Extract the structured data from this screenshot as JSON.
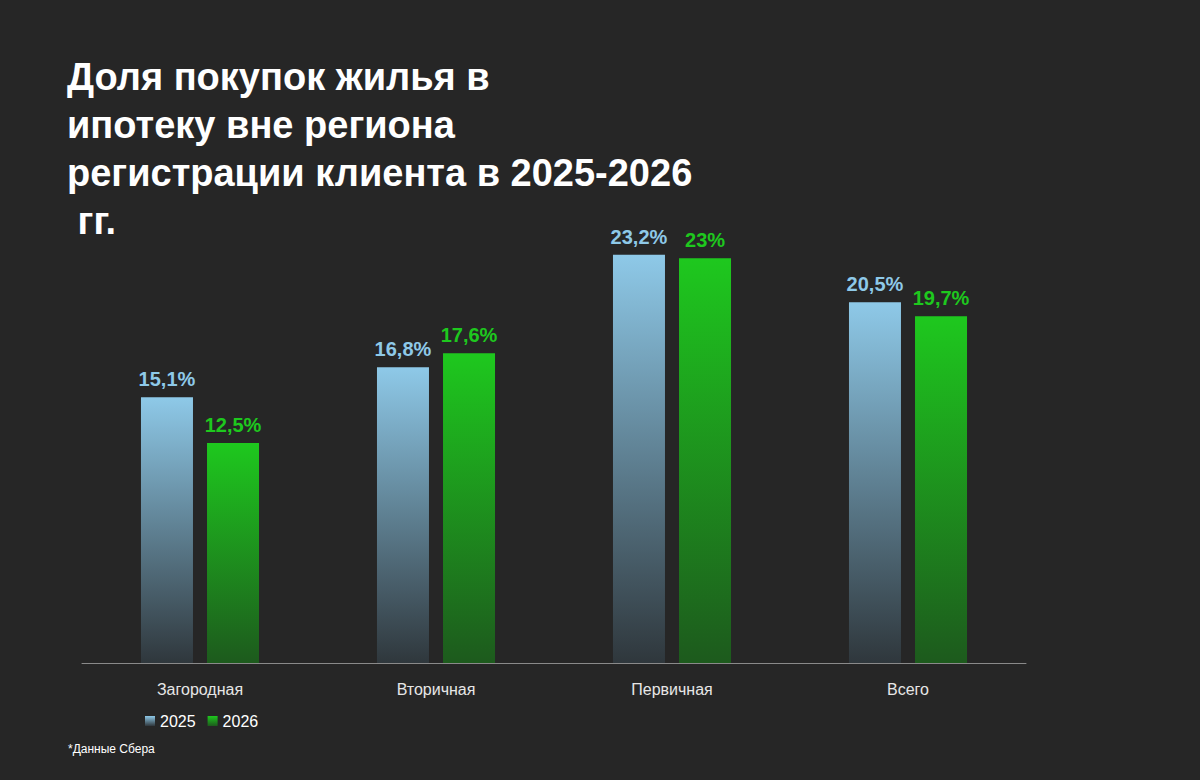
{
  "chart_data": {
    "type": "bar",
    "title": "Доля покупок жилья в ипотеку вне региона регистрации клиента в 2025-2026 гг.",
    "categories": [
      "Загородная",
      "Вторичная",
      "Первичная",
      "Всего"
    ],
    "series": [
      {
        "name": "2025",
        "color": "#8ec9e8",
        "values": [
          15.1,
          16.8,
          23.2,
          20.5
        ],
        "value_labels": [
          "15,1%",
          "16,8%",
          "23,2%",
          "20,5%"
        ]
      },
      {
        "name": "2026",
        "color": "#1ec81e",
        "values": [
          12.5,
          17.6,
          23,
          19.7
        ],
        "value_labels": [
          "12,5%",
          "17,6%",
          "23%",
          "19,7%"
        ]
      }
    ],
    "ylim": [
      0,
      25
    ],
    "grid": false,
    "legend": "lower left",
    "data_labels": true,
    "tick_labels": "x",
    "annotations": [
      "*Данные Сбера"
    ]
  }
}
